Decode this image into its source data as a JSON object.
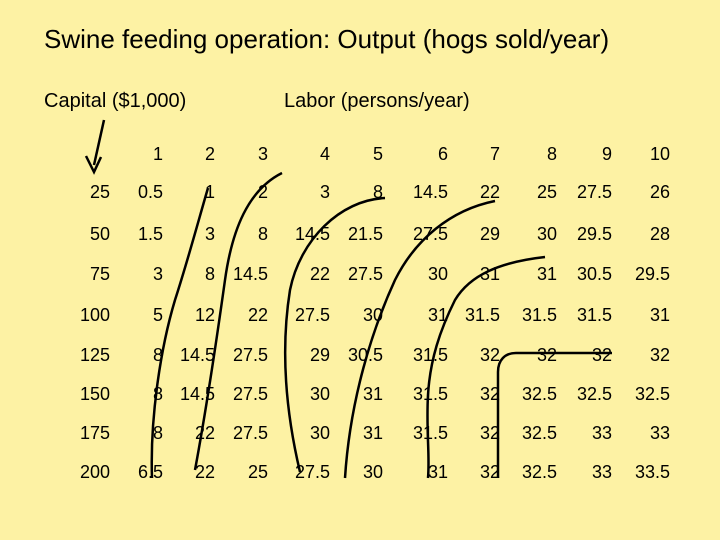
{
  "title": "Swine feeding operation: Output (hogs sold/year)",
  "capital_label": "Capital ($1,000)",
  "labor_label": "Labor (persons/year)",
  "labor_values": [
    "1",
    "2",
    "3",
    "4",
    "5",
    "6",
    "7",
    "8",
    "9",
    "10"
  ],
  "capital_values": [
    "25",
    "50",
    "75",
    "100",
    "125",
    "150",
    "175",
    "200"
  ],
  "rows": [
    [
      "0.5",
      "1",
      "2",
      "3",
      "8",
      "14.5",
      "22",
      "25",
      "27.5",
      "26"
    ],
    [
      "1.5",
      "3",
      "8",
      "14.5",
      "21.5",
      "27.5",
      "29",
      "30",
      "29.5",
      "28"
    ],
    [
      "3",
      "8",
      "14.5",
      "22",
      "27.5",
      "30",
      "31",
      "31",
      "30.5",
      "29.5"
    ],
    [
      "5",
      "12",
      "22",
      "27.5",
      "30",
      "31",
      "31.5",
      "31.5",
      "31.5",
      "31"
    ],
    [
      "8",
      "14.5",
      "27.5",
      "29",
      "30.5",
      "31.5",
      "32",
      "32",
      "32",
      "32"
    ],
    [
      "8",
      "14.5",
      "27.5",
      "30",
      "31",
      "31.5",
      "32",
      "32.5",
      "32.5",
      "32.5"
    ],
    [
      "8",
      "22",
      "27.5",
      "30",
      "31",
      "31.5",
      "32",
      "32.5",
      "33",
      "33"
    ],
    [
      "6.5",
      "22",
      "25",
      "27.5",
      "30",
      "31",
      "32",
      "32.5",
      "33",
      "33.5"
    ]
  ]
}
